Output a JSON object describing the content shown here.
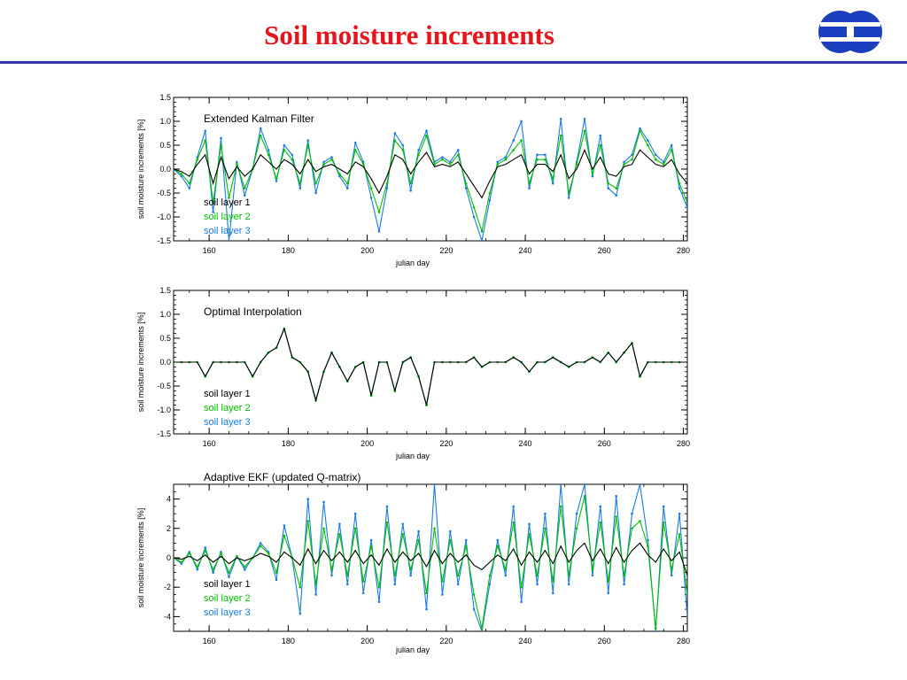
{
  "slide": {
    "title": "Soil moisture increments"
  },
  "logo": {
    "name": "ECMWF logo",
    "color": "#1a3fbf"
  },
  "colors": {
    "layer1": "#000000",
    "layer2": "#00c000",
    "layer3": "#1a7be0"
  },
  "chart_data": [
    {
      "type": "line",
      "title": "Extended Kalman Filter",
      "xlabel": "julian day",
      "ylabel": "soil moisture increments [%]",
      "xlim": [
        151,
        281
      ],
      "ylim": [
        -1.5,
        1.5
      ],
      "xticks": [
        160,
        180,
        200,
        220,
        240,
        260,
        280
      ],
      "yticks": [
        -1.5,
        -1.0,
        -0.5,
        0.0,
        0.5,
        1.0,
        1.5
      ],
      "ytick_labels": [
        "-1.5",
        "-1.0",
        "-0.5",
        "0.0",
        "0.5",
        "1.0",
        "1.5"
      ],
      "x": [
        151,
        153,
        155,
        157,
        159,
        161,
        163,
        165,
        167,
        169,
        171,
        173,
        175,
        177,
        179,
        181,
        183,
        185,
        187,
        189,
        191,
        193,
        195,
        197,
        199,
        201,
        203,
        205,
        207,
        209,
        211,
        213,
        215,
        217,
        219,
        221,
        223,
        225,
        227,
        229,
        231,
        233,
        235,
        237,
        239,
        241,
        243,
        245,
        247,
        249,
        251,
        253,
        255,
        257,
        259,
        261,
        263,
        265,
        267,
        269,
        271,
        273,
        275,
        277,
        279,
        281
      ],
      "series": [
        {
          "name": "soil layer 1",
          "marker": false,
          "values": [
            0.0,
            -0.05,
            -0.15,
            0.1,
            0.3,
            -0.3,
            0.25,
            -0.2,
            0.05,
            -0.15,
            0.0,
            0.3,
            0.15,
            0.0,
            0.2,
            0.1,
            -0.1,
            0.2,
            -0.05,
            0.05,
            0.1,
            0.0,
            -0.1,
            0.15,
            0.05,
            -0.2,
            -0.5,
            -0.15,
            0.3,
            0.2,
            -0.1,
            0.15,
            0.35,
            0.05,
            0.1,
            0.05,
            0.15,
            -0.1,
            -0.35,
            -0.6,
            -0.25,
            0.05,
            0.1,
            0.2,
            0.3,
            -0.1,
            0.1,
            0.1,
            -0.05,
            0.3,
            -0.2,
            0.0,
            0.4,
            0.0,
            0.25,
            -0.1,
            -0.15,
            0.05,
            0.1,
            0.4,
            0.25,
            0.1,
            0.05,
            0.2,
            -0.1,
            -0.3
          ]
        },
        {
          "name": "soil layer 2",
          "marker": true,
          "values": [
            0.0,
            -0.1,
            -0.3,
            0.2,
            0.6,
            -0.7,
            0.5,
            -0.6,
            0.1,
            -0.4,
            0.0,
            0.7,
            0.3,
            -0.2,
            0.4,
            0.2,
            -0.3,
            0.5,
            -0.3,
            0.1,
            0.2,
            -0.1,
            -0.3,
            0.4,
            0.1,
            -0.4,
            -0.9,
            -0.3,
            0.6,
            0.4,
            -0.3,
            0.3,
            0.7,
            0.1,
            0.2,
            0.1,
            0.3,
            -0.3,
            -0.8,
            -1.3,
            -0.5,
            0.1,
            0.2,
            0.4,
            0.6,
            -0.3,
            0.2,
            0.2,
            -0.2,
            0.7,
            -0.5,
            0.1,
            0.8,
            -0.1,
            0.5,
            -0.3,
            -0.4,
            0.1,
            0.2,
            0.8,
            0.5,
            0.2,
            0.1,
            0.4,
            -0.3,
            -0.7
          ]
        },
        {
          "name": "soil layer 3",
          "marker": true,
          "values": [
            0.0,
            -0.15,
            -0.4,
            0.25,
            0.8,
            -0.9,
            0.65,
            -1.5,
            0.15,
            -0.55,
            0.0,
            0.85,
            0.4,
            -0.25,
            0.5,
            0.3,
            -0.4,
            0.6,
            -0.5,
            0.15,
            0.25,
            -0.15,
            -0.4,
            0.55,
            0.15,
            -0.6,
            -1.3,
            -0.4,
            0.75,
            0.5,
            -0.45,
            0.4,
            0.8,
            0.15,
            0.25,
            0.15,
            0.4,
            -0.4,
            -1.0,
            -1.5,
            -0.65,
            0.15,
            0.25,
            0.6,
            1.0,
            -0.4,
            0.3,
            0.3,
            -0.3,
            1.05,
            -0.6,
            0.15,
            1.05,
            -0.15,
            0.7,
            -0.4,
            -0.55,
            0.15,
            0.3,
            0.85,
            0.6,
            0.3,
            0.15,
            0.5,
            -0.4,
            -0.8
          ]
        }
      ],
      "legend_position": "lower-left"
    },
    {
      "type": "line",
      "title": "Optimal Interpolation",
      "xlabel": "julian day",
      "ylabel": "soil moisture increments [%]",
      "xlim": [
        151,
        281
      ],
      "ylim": [
        -1.5,
        1.5
      ],
      "xticks": [
        160,
        180,
        200,
        220,
        240,
        260,
        280
      ],
      "yticks": [
        -1.5,
        -1.0,
        -0.5,
        0.0,
        0.5,
        1.0,
        1.5
      ],
      "ytick_labels": [
        "-1.5",
        "-1.0",
        "-0.5",
        "0.0",
        "0.5",
        "1.0",
        "1.5"
      ],
      "x": [
        151,
        153,
        155,
        157,
        159,
        161,
        163,
        165,
        167,
        169,
        171,
        173,
        175,
        177,
        179,
        181,
        183,
        185,
        187,
        189,
        191,
        193,
        195,
        197,
        199,
        201,
        203,
        205,
        207,
        209,
        211,
        213,
        215,
        217,
        219,
        221,
        223,
        225,
        227,
        229,
        231,
        233,
        235,
        237,
        239,
        241,
        243,
        245,
        247,
        249,
        251,
        253,
        255,
        257,
        259,
        261,
        263,
        265,
        267,
        269,
        271,
        273,
        275,
        277,
        279,
        281
      ],
      "series": [
        {
          "name": "soil layer 1",
          "marker": false,
          "values": [
            0.0,
            0.0,
            0.0,
            0.0,
            -0.3,
            0.0,
            0.0,
            0.0,
            0.0,
            0.0,
            -0.3,
            0.0,
            0.2,
            0.3,
            0.7,
            0.1,
            0.0,
            -0.2,
            -0.8,
            -0.2,
            0.2,
            -0.1,
            -0.4,
            -0.1,
            0.0,
            -0.7,
            0.0,
            0.0,
            -0.6,
            0.0,
            0.1,
            -0.3,
            -0.9,
            0.0,
            0.0,
            0.0,
            0.0,
            0.0,
            0.1,
            -0.1,
            0.0,
            0.0,
            0.0,
            0.1,
            0.0,
            -0.2,
            0.0,
            0.0,
            0.1,
            0.0,
            -0.1,
            0.0,
            0.0,
            0.1,
            0.0,
            0.2,
            0.0,
            0.2,
            0.4,
            -0.3,
            0.0,
            0.0,
            0.0,
            0.0,
            0.0,
            0.0
          ]
        },
        {
          "name": "soil layer 2",
          "marker": true,
          "values": [
            0.0,
            0.0,
            0.0,
            0.0,
            -0.3,
            0.0,
            0.0,
            0.0,
            0.0,
            0.0,
            -0.3,
            0.0,
            0.2,
            0.3,
            0.7,
            0.1,
            0.0,
            -0.2,
            -0.8,
            -0.2,
            0.2,
            -0.1,
            -0.4,
            -0.1,
            0.0,
            -0.7,
            0.0,
            0.0,
            -0.6,
            0.0,
            0.1,
            -0.3,
            -0.9,
            0.0,
            0.0,
            0.0,
            0.0,
            0.0,
            0.1,
            -0.1,
            0.0,
            0.0,
            0.0,
            0.1,
            0.0,
            -0.2,
            0.0,
            0.0,
            0.1,
            0.0,
            -0.1,
            0.0,
            0.0,
            0.1,
            0.0,
            0.2,
            0.0,
            0.2,
            0.4,
            -0.3,
            0.0,
            0.0,
            0.0,
            0.0,
            0.0,
            0.0
          ]
        },
        {
          "name": "soil layer 3",
          "marker": true,
          "values": [
            0.0,
            0.0,
            0.0,
            0.0,
            -0.3,
            0.0,
            0.0,
            0.0,
            0.0,
            0.0,
            -0.3,
            0.0,
            0.2,
            0.3,
            0.7,
            0.1,
            0.0,
            -0.2,
            -0.8,
            -0.2,
            0.2,
            -0.1,
            -0.4,
            -0.1,
            0.0,
            -0.7,
            0.0,
            0.0,
            -0.6,
            0.0,
            0.1,
            -0.3,
            -0.9,
            0.0,
            0.0,
            0.0,
            0.0,
            0.0,
            0.1,
            -0.1,
            0.0,
            0.0,
            0.0,
            0.1,
            0.0,
            -0.2,
            0.0,
            0.0,
            0.1,
            0.0,
            -0.1,
            0.0,
            0.0,
            0.1,
            0.0,
            0.2,
            0.0,
            0.2,
            0.4,
            -0.3,
            0.0,
            0.0,
            0.0,
            0.0,
            0.0,
            0.0
          ]
        }
      ],
      "legend_position": "lower-left"
    },
    {
      "type": "line",
      "title": "Adaptive EKF (updated Q-matrix)",
      "xlabel": "julian day",
      "ylabel": "soil moisture increments [%]",
      "xlim": [
        151,
        281
      ],
      "ylim": [
        -5,
        5
      ],
      "xticks": [
        160,
        180,
        200,
        220,
        240,
        260,
        280
      ],
      "yticks": [
        -4,
        -2,
        0,
        2,
        4
      ],
      "ytick_labels": [
        "-4",
        "-2",
        "0",
        "2",
        "4"
      ],
      "x": [
        151,
        153,
        155,
        157,
        159,
        161,
        163,
        165,
        167,
        169,
        171,
        173,
        175,
        177,
        179,
        181,
        183,
        185,
        187,
        189,
        191,
        193,
        195,
        197,
        199,
        201,
        203,
        205,
        207,
        209,
        211,
        213,
        215,
        217,
        219,
        221,
        223,
        225,
        227,
        229,
        231,
        233,
        235,
        237,
        239,
        241,
        243,
        245,
        247,
        249,
        251,
        253,
        255,
        257,
        259,
        261,
        263,
        265,
        267,
        269,
        271,
        273,
        275,
        277,
        279,
        281
      ],
      "series": [
        {
          "name": "soil layer 1",
          "marker": false,
          "values": [
            0.0,
            -0.1,
            0.1,
            -0.2,
            0.2,
            -0.3,
            0.1,
            -0.4,
            0.0,
            -0.2,
            0.0,
            0.3,
            0.1,
            -0.3,
            0.4,
            0.0,
            -0.5,
            0.6,
            -0.4,
            0.5,
            -0.2,
            0.4,
            -0.3,
            0.5,
            -0.4,
            0.2,
            -0.5,
            0.6,
            -0.3,
            0.4,
            -0.2,
            0.3,
            -0.6,
            0.5,
            -0.4,
            0.3,
            -0.3,
            0.2,
            -0.5,
            -0.8,
            -0.3,
            0.2,
            -0.2,
            0.6,
            -0.5,
            0.4,
            -0.3,
            0.5,
            -0.4,
            0.8,
            -0.3,
            0.5,
            1.0,
            -0.2,
            0.6,
            -0.4,
            0.7,
            -0.3,
            0.5,
            1.0,
            0.2,
            -0.3,
            0.6,
            -0.2,
            0.4,
            -1.2
          ]
        },
        {
          "name": "soil layer 2",
          "marker": true,
          "values": [
            0.0,
            -0.3,
            0.3,
            -0.6,
            0.5,
            -0.8,
            0.3,
            -1.0,
            0.1,
            -0.6,
            0.0,
            0.8,
            0.3,
            -1.0,
            1.5,
            0.0,
            -2.0,
            2.5,
            -1.8,
            2.0,
            -0.8,
            1.6,
            -1.2,
            2.0,
            -1.6,
            0.8,
            -2.0,
            2.4,
            -1.2,
            1.6,
            -0.8,
            1.2,
            -2.4,
            2.0,
            -1.6,
            1.2,
            -1.2,
            0.8,
            -2.5,
            -4.8,
            -1.2,
            0.8,
            -0.8,
            2.4,
            -2.0,
            1.6,
            -1.2,
            2.0,
            -1.6,
            3.5,
            -1.2,
            2.0,
            4.2,
            -0.8,
            2.4,
            -1.6,
            2.8,
            -1.2,
            2.0,
            2.5,
            0.8,
            -4.8,
            2.4,
            -0.8,
            1.6,
            -2.5
          ]
        },
        {
          "name": "soil layer 3",
          "marker": true,
          "values": [
            0.0,
            -0.4,
            0.4,
            -0.8,
            0.7,
            -1.0,
            0.4,
            -1.3,
            0.1,
            -0.8,
            0.0,
            1.0,
            0.4,
            -1.5,
            2.2,
            0.0,
            -3.8,
            4.0,
            -2.5,
            3.8,
            -1.2,
            2.3,
            -1.8,
            3.0,
            -2.4,
            1.2,
            -3.0,
            3.5,
            -1.8,
            2.3,
            -1.2,
            1.8,
            -3.5,
            5.0,
            -2.5,
            1.8,
            -1.8,
            1.2,
            -3.5,
            -5.0,
            -1.8,
            1.2,
            -1.2,
            3.5,
            -3.0,
            2.3,
            -1.8,
            3.0,
            -2.4,
            5.0,
            -1.8,
            3.0,
            5.0,
            -1.2,
            3.5,
            -2.4,
            4.2,
            -1.8,
            3.0,
            5.0,
            1.2,
            -5.0,
            3.5,
            -1.2,
            3.0,
            -4.0
          ]
        }
      ],
      "legend_position": "lower-left"
    }
  ]
}
